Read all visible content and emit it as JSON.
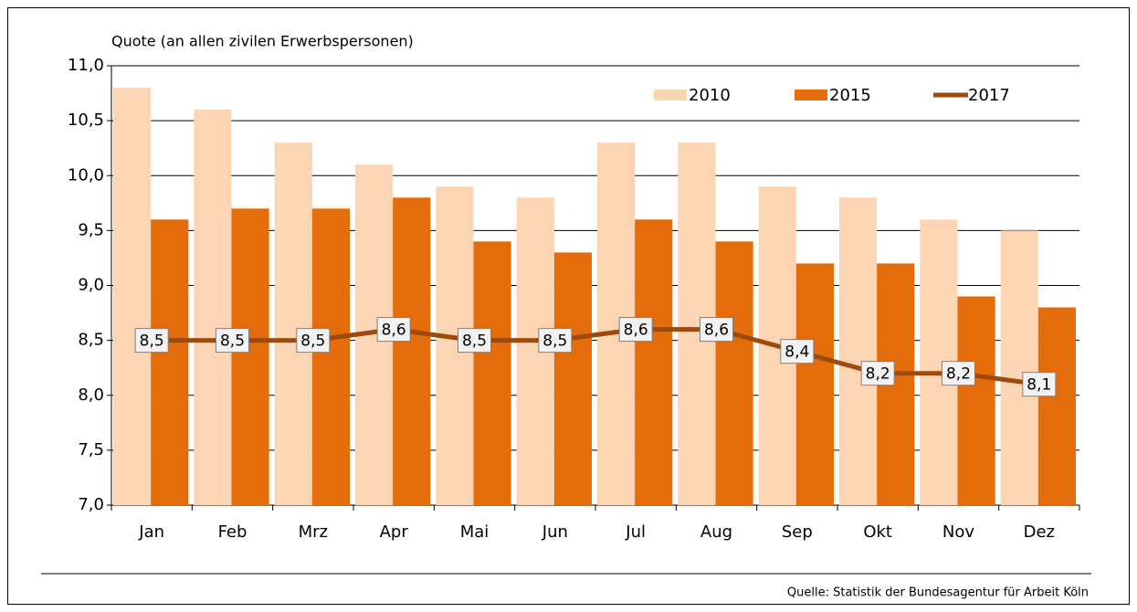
{
  "chart_data": {
    "type": "bar",
    "y_axis_label": "Quote (an allen zivilen Erwerbspersonen)",
    "source": "Quelle: Statistik der Bundesagentur für Arbeit Köln",
    "categories": [
      "Jan",
      "Feb",
      "Mrz",
      "Apr",
      "Mai",
      "Jun",
      "Jul",
      "Aug",
      "Sep",
      "Okt",
      "Nov",
      "Dez"
    ],
    "series": [
      {
        "name": "2010",
        "type": "bar",
        "color": "#fcd5b4",
        "values": [
          10.8,
          10.6,
          10.3,
          10.1,
          9.9,
          9.8,
          10.3,
          10.3,
          9.9,
          9.8,
          9.6,
          9.5
        ]
      },
      {
        "name": "2015",
        "type": "bar",
        "color": "#e46c0a",
        "values": [
          9.6,
          9.7,
          9.7,
          9.8,
          9.4,
          9.3,
          9.6,
          9.4,
          9.2,
          9.2,
          8.9,
          8.8
        ]
      },
      {
        "name": "2017",
        "type": "line",
        "color": "#9c4a0e",
        "values": [
          8.5,
          8.5,
          8.5,
          8.6,
          8.5,
          8.5,
          8.6,
          8.6,
          8.4,
          8.2,
          8.2,
          8.1
        ],
        "value_labels": [
          "8,5",
          "8,5",
          "8,5",
          "8,6",
          "8,5",
          "8,5",
          "8,6",
          "8,6",
          "8,4",
          "8,2",
          "8,2",
          "8,1"
        ]
      }
    ],
    "ylim": [
      7.0,
      11.0
    ],
    "yticks": [
      {
        "value": 7.0,
        "label": "7,0"
      },
      {
        "value": 7.5,
        "label": "7,5"
      },
      {
        "value": 8.0,
        "label": "8,0"
      },
      {
        "value": 8.5,
        "label": "8,5"
      },
      {
        "value": 9.0,
        "label": "9,0"
      },
      {
        "value": 9.5,
        "label": "9,5"
      },
      {
        "value": 10.0,
        "label": "10,0"
      },
      {
        "value": 10.5,
        "label": "10,5"
      },
      {
        "value": 11.0,
        "label": "11,0"
      }
    ],
    "grid": true,
    "legend_position": "top-right"
  }
}
